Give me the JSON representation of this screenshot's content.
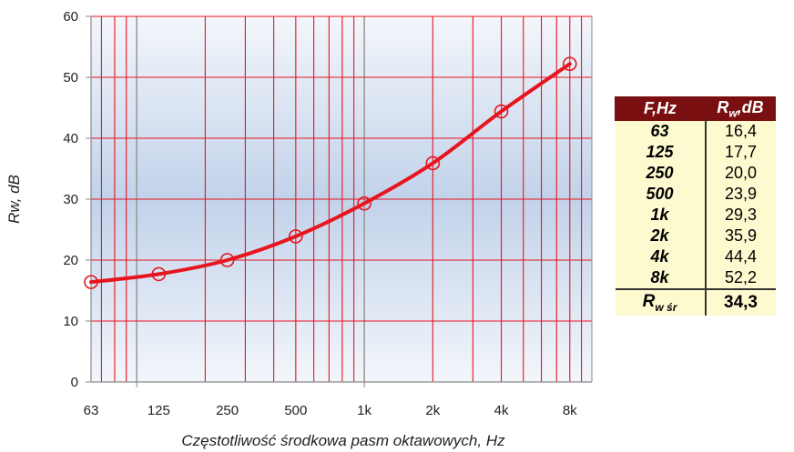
{
  "chart_data": {
    "type": "line",
    "x": [
      "63",
      "125",
      "250",
      "500",
      "1k",
      "2k",
      "4k",
      "8k"
    ],
    "series": [
      {
        "values": [
          16.4,
          17.7,
          20.0,
          23.9,
          29.3,
          35.9,
          44.4,
          52.2
        ]
      }
    ],
    "x_ticks": [
      "63",
      "125",
      "250",
      "500",
      "1k",
      "2k",
      "4k",
      "8k"
    ],
    "y_ticks": [
      "0",
      "10",
      "20",
      "30",
      "40",
      "50",
      "60"
    ],
    "xlabel": "Częstotliwość środkowa pasm oktawowych,  Hz",
    "ylabel": "Rw, dB",
    "ylim": [
      0,
      60
    ],
    "xlim": [
      63,
      10000
    ],
    "x_scale": "log",
    "grid": true,
    "line_color": "#e8141e",
    "grid_color": "#e8141e"
  },
  "table": {
    "header_freq": "F,Hz",
    "header_rw_main": "R",
    "header_rw_sub": "w",
    "header_rw_unit": ",dB",
    "rows": [
      {
        "f": "63",
        "rw": "16,4"
      },
      {
        "f": "125",
        "rw": "17,7"
      },
      {
        "f": "250",
        "rw": "20,0"
      },
      {
        "f": "500",
        "rw": "23,9"
      },
      {
        "f": "1k",
        "rw": "29,3"
      },
      {
        "f": "2k",
        "rw": "35,9"
      },
      {
        "f": "4k",
        "rw": "44,4"
      },
      {
        "f": "8k",
        "rw": "52,2"
      }
    ],
    "avg_label_main": "R",
    "avg_label_sub": "w śr",
    "avg_value": "34,3"
  }
}
